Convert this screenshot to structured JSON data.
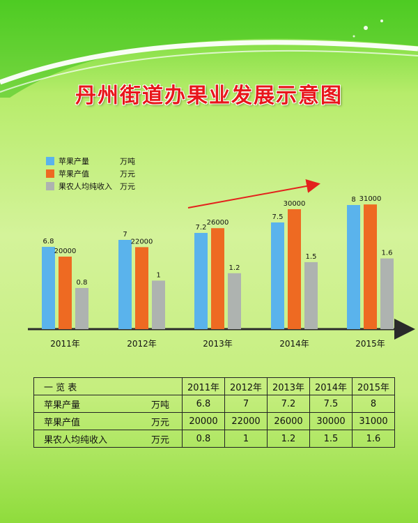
{
  "title": "丹州街道办果业发展示意图",
  "legend": [
    {
      "name": "苹果产量",
      "unit": "万吨",
      "color": "#5ab3ec"
    },
    {
      "name": "苹果产值",
      "unit": "万元",
      "color": "#ee6a22"
    },
    {
      "name": "果农人均纯收入",
      "unit": "万元",
      "color": "#aeb3b0"
    }
  ],
  "chart_data": {
    "type": "bar",
    "categories": [
      "2011年",
      "2012年",
      "2013年",
      "2014年",
      "2015年"
    ],
    "series": [
      {
        "name": "苹果产量",
        "unit": "万吨",
        "color": "#5ab3ec",
        "values": [
          6.8,
          7,
          7.2,
          7.5,
          8
        ],
        "labels": [
          "6.8",
          "7",
          "7.2",
          "7.5",
          "8"
        ]
      },
      {
        "name": "苹果产值",
        "unit": "万元",
        "color": "#ee6a22",
        "values": [
          20000,
          22000,
          26000,
          30000,
          31000
        ],
        "labels": [
          "20000",
          "22000",
          "26000",
          "30000",
          "31000"
        ]
      },
      {
        "name": "果农人均纯收入",
        "unit": "万元",
        "color": "#aeb3b0",
        "values": [
          0.8,
          1,
          1.2,
          1.5,
          1.6
        ],
        "labels": [
          "0.8",
          "1",
          "1.2",
          "1.5",
          "1.6"
        ]
      }
    ],
    "note": "schematic chart without numeric axis; bar heights illustrative",
    "grid": false
  },
  "table": {
    "header": "一 览 表",
    "years": [
      "2011年",
      "2012年",
      "2013年",
      "2014年",
      "2015年"
    ],
    "rows": [
      {
        "label": "苹果产量",
        "unit": "万吨",
        "values": [
          "6.8",
          "7",
          "7.2",
          "7.5",
          "8"
        ]
      },
      {
        "label": "苹果产值",
        "unit": "万元",
        "values": [
          "20000",
          "22000",
          "26000",
          "30000",
          "31000"
        ]
      },
      {
        "label": "果农人均纯收入",
        "unit": "万元",
        "values": [
          "0.8",
          "1",
          "1.2",
          "1.5",
          "1.6"
        ]
      }
    ]
  }
}
